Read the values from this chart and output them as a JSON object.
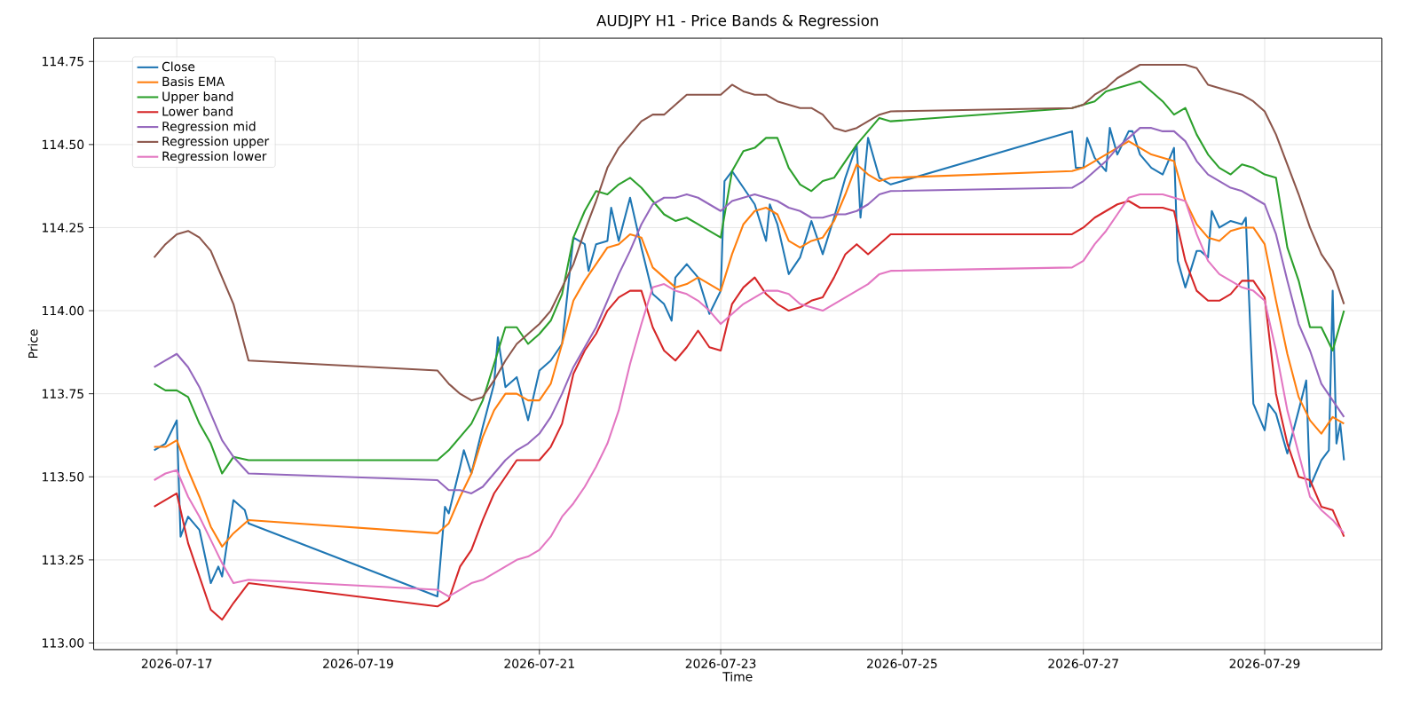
{
  "chart_data": {
    "type": "line",
    "title": "AUDJPY H1 - Price Bands & Regression",
    "xlabel": "Time",
    "ylabel": "Price",
    "xlim": [
      "2026-07-16T02:00",
      "2026-07-30T07:00"
    ],
    "ylim": [
      112.98,
      114.82
    ],
    "xticks": [
      "2026-07-17",
      "2026-07-19",
      "2026-07-21",
      "2026-07-23",
      "2026-07-25",
      "2026-07-27",
      "2026-07-29"
    ],
    "yticks": [
      {
        "value": 113.0,
        "label": "113.00"
      },
      {
        "value": 113.25,
        "label": "113.25"
      },
      {
        "value": 113.5,
        "label": "113.50"
      },
      {
        "value": 113.75,
        "label": "113.75"
      },
      {
        "value": 114.0,
        "label": "114.00"
      },
      {
        "value": 114.25,
        "label": "114.25"
      },
      {
        "value": 114.5,
        "label": "114.50"
      },
      {
        "value": 114.75,
        "label": "114.75"
      }
    ],
    "grid": true,
    "legend": "top left",
    "x": [
      "2026-07-16T18:00",
      "2026-07-16T21:00",
      "2026-07-17T00:00",
      "2026-07-17T03:00",
      "2026-07-17T06:00",
      "2026-07-17T09:00",
      "2026-07-17T12:00",
      "2026-07-17T15:00",
      "2026-07-17T19:00",
      "2026-07-19T21:00",
      "2026-07-20T00:00",
      "2026-07-20T03:00",
      "2026-07-20T06:00",
      "2026-07-20T09:00",
      "2026-07-20T12:00",
      "2026-07-20T15:00",
      "2026-07-20T18:00",
      "2026-07-20T21:00",
      "2026-07-21T00:00",
      "2026-07-21T03:00",
      "2026-07-21T06:00",
      "2026-07-21T09:00",
      "2026-07-21T12:00",
      "2026-07-21T15:00",
      "2026-07-21T18:00",
      "2026-07-21T21:00",
      "2026-07-22T00:00",
      "2026-07-22T03:00",
      "2026-07-22T06:00",
      "2026-07-22T09:00",
      "2026-07-22T12:00",
      "2026-07-22T15:00",
      "2026-07-22T18:00",
      "2026-07-22T21:00",
      "2026-07-23T00:00",
      "2026-07-23T03:00",
      "2026-07-23T06:00",
      "2026-07-23T09:00",
      "2026-07-23T12:00",
      "2026-07-23T15:00",
      "2026-07-23T18:00",
      "2026-07-23T21:00",
      "2026-07-24T00:00",
      "2026-07-24T03:00",
      "2026-07-24T06:00",
      "2026-07-24T09:00",
      "2026-07-24T12:00",
      "2026-07-24T15:00",
      "2026-07-24T18:00",
      "2026-07-24T21:00",
      "2026-07-26T21:00",
      "2026-07-27T00:00",
      "2026-07-27T03:00",
      "2026-07-27T06:00",
      "2026-07-27T09:00",
      "2026-07-27T12:00",
      "2026-07-27T15:00",
      "2026-07-27T18:00",
      "2026-07-27T21:00",
      "2026-07-28T00:00",
      "2026-07-28T03:00",
      "2026-07-28T06:00",
      "2026-07-28T09:00",
      "2026-07-28T12:00",
      "2026-07-28T15:00",
      "2026-07-28T18:00",
      "2026-07-28T21:00",
      "2026-07-29T00:00",
      "2026-07-29T03:00",
      "2026-07-29T06:00",
      "2026-07-29T09:00",
      "2026-07-29T12:00",
      "2026-07-29T15:00",
      "2026-07-29T18:00",
      "2026-07-29T21:00"
    ],
    "series": [
      {
        "name": "Close",
        "color": "#1f77b4",
        "x": [
          "2026-07-16T18:00",
          "2026-07-16T21:00",
          "2026-07-17T00:00",
          "2026-07-17T01:00",
          "2026-07-17T03:00",
          "2026-07-17T06:00",
          "2026-07-17T09:00",
          "2026-07-17T11:00",
          "2026-07-17T12:00",
          "2026-07-17T15:00",
          "2026-07-17T17:00",
          "2026-07-17T18:00",
          "2026-07-17T19:00",
          "2026-07-19T21:00",
          "2026-07-19T23:00",
          "2026-07-20T00:00",
          "2026-07-20T03:00",
          "2026-07-20T04:00",
          "2026-07-20T06:00",
          "2026-07-20T09:00",
          "2026-07-20T12:00",
          "2026-07-20T13:00",
          "2026-07-20T15:00",
          "2026-07-20T18:00",
          "2026-07-20T21:00",
          "2026-07-21T00:00",
          "2026-07-21T03:00",
          "2026-07-21T06:00",
          "2026-07-21T09:00",
          "2026-07-21T12:00",
          "2026-07-21T13:00",
          "2026-07-21T15:00",
          "2026-07-21T18:00",
          "2026-07-21T19:00",
          "2026-07-21T21:00",
          "2026-07-22T00:00",
          "2026-07-22T03:00",
          "2026-07-22T06:00",
          "2026-07-22T09:00",
          "2026-07-22T11:00",
          "2026-07-22T12:00",
          "2026-07-22T15:00",
          "2026-07-22T18:00",
          "2026-07-22T21:00",
          "2026-07-23T00:00",
          "2026-07-23T01:00",
          "2026-07-23T03:00",
          "2026-07-23T06:00",
          "2026-07-23T09:00",
          "2026-07-23T12:00",
          "2026-07-23T13:00",
          "2026-07-23T15:00",
          "2026-07-23T18:00",
          "2026-07-23T21:00",
          "2026-07-24T00:00",
          "2026-07-24T03:00",
          "2026-07-24T06:00",
          "2026-07-24T09:00",
          "2026-07-24T12:00",
          "2026-07-24T13:00",
          "2026-07-24T15:00",
          "2026-07-24T18:00",
          "2026-07-24T21:00",
          "2026-07-26T21:00",
          "2026-07-26T22:00",
          "2026-07-27T00:00",
          "2026-07-27T01:00",
          "2026-07-27T03:00",
          "2026-07-27T06:00",
          "2026-07-27T07:00",
          "2026-07-27T09:00",
          "2026-07-27T12:00",
          "2026-07-27T13:00",
          "2026-07-27T15:00",
          "2026-07-27T18:00",
          "2026-07-27T21:00",
          "2026-07-28T00:00",
          "2026-07-28T01:00",
          "2026-07-28T03:00",
          "2026-07-28T06:00",
          "2026-07-28T07:00",
          "2026-07-28T09:00",
          "2026-07-28T10:00",
          "2026-07-28T12:00",
          "2026-07-28T15:00",
          "2026-07-28T18:00",
          "2026-07-28T19:00",
          "2026-07-28T21:00",
          "2026-07-29T00:00",
          "2026-07-29T01:00",
          "2026-07-29T03:00",
          "2026-07-29T06:00",
          "2026-07-29T09:00",
          "2026-07-29T11:00",
          "2026-07-29T12:00",
          "2026-07-29T15:00",
          "2026-07-29T17:00",
          "2026-07-29T18:00",
          "2026-07-29T19:00",
          "2026-07-29T20:00",
          "2026-07-29T21:00"
        ],
        "values": [
          113.58,
          113.6,
          113.67,
          113.32,
          113.38,
          113.34,
          113.18,
          113.23,
          113.2,
          113.43,
          113.41,
          113.4,
          113.36,
          113.14,
          113.41,
          113.39,
          113.53,
          113.58,
          113.51,
          113.65,
          113.78,
          113.92,
          113.77,
          113.8,
          113.67,
          113.82,
          113.85,
          113.9,
          114.22,
          114.2,
          114.12,
          114.2,
          114.21,
          114.31,
          114.21,
          114.34,
          114.19,
          114.05,
          114.02,
          113.97,
          114.1,
          114.14,
          114.1,
          113.99,
          114.06,
          114.39,
          114.42,
          114.37,
          114.32,
          114.21,
          114.32,
          114.26,
          114.11,
          114.16,
          114.27,
          114.17,
          114.28,
          114.4,
          114.5,
          114.28,
          114.52,
          114.4,
          114.38,
          114.54,
          114.43,
          114.43,
          114.52,
          114.46,
          114.42,
          114.55,
          114.47,
          114.54,
          114.54,
          114.47,
          114.43,
          114.41,
          114.49,
          114.15,
          114.07,
          114.18,
          114.18,
          114.16,
          114.3,
          114.25,
          114.27,
          114.26,
          114.28,
          113.72,
          113.64,
          113.72,
          113.69,
          113.57,
          113.7,
          113.79,
          113.47,
          113.55,
          113.58,
          114.06,
          113.6,
          113.66,
          113.55
        ]
      },
      {
        "name": "Basis EMA",
        "color": "#ff7f0e",
        "values": [
          113.59,
          113.59,
          113.61,
          113.52,
          113.44,
          113.35,
          113.29,
          113.33,
          113.37,
          113.33,
          113.36,
          113.44,
          113.51,
          113.62,
          113.7,
          113.75,
          113.75,
          113.73,
          113.73,
          113.78,
          113.9,
          114.03,
          114.09,
          114.14,
          114.19,
          114.2,
          114.23,
          114.22,
          114.13,
          114.1,
          114.07,
          114.08,
          114.1,
          114.08,
          114.06,
          114.17,
          114.26,
          114.3,
          114.31,
          114.29,
          114.21,
          114.19,
          114.21,
          114.22,
          114.27,
          114.35,
          114.44,
          114.41,
          114.39,
          114.4,
          114.42,
          114.43,
          114.45,
          114.47,
          114.49,
          114.51,
          114.49,
          114.47,
          114.46,
          114.45,
          114.33,
          114.26,
          114.22,
          114.21,
          114.24,
          114.25,
          114.25,
          114.2,
          114.03,
          113.87,
          113.74,
          113.67,
          113.63,
          113.68,
          113.66
        ]
      },
      {
        "name": "Upper band",
        "color": "#2ca02c",
        "values": [
          113.78,
          113.76,
          113.76,
          113.74,
          113.66,
          113.6,
          113.51,
          113.56,
          113.55,
          113.55,
          113.58,
          113.62,
          113.66,
          113.73,
          113.84,
          113.95,
          113.95,
          113.9,
          113.93,
          113.97,
          114.05,
          114.22,
          114.3,
          114.36,
          114.35,
          114.38,
          114.4,
          114.37,
          114.33,
          114.29,
          114.27,
          114.28,
          114.26,
          114.24,
          114.22,
          114.42,
          114.48,
          114.49,
          114.52,
          114.52,
          114.43,
          114.38,
          114.36,
          114.39,
          114.4,
          114.45,
          114.5,
          114.54,
          114.58,
          114.57,
          114.61,
          114.62,
          114.63,
          114.66,
          114.67,
          114.68,
          114.69,
          114.66,
          114.63,
          114.59,
          114.61,
          114.53,
          114.47,
          114.43,
          114.41,
          114.44,
          114.43,
          114.41,
          114.4,
          114.19,
          114.09,
          113.95,
          113.95,
          113.88,
          114.0
        ]
      },
      {
        "name": "Lower band",
        "color": "#d62728",
        "values": [
          113.41,
          113.43,
          113.45,
          113.3,
          113.2,
          113.1,
          113.07,
          113.12,
          113.18,
          113.11,
          113.13,
          113.23,
          113.28,
          113.37,
          113.45,
          113.5,
          113.55,
          113.55,
          113.55,
          113.59,
          113.66,
          113.81,
          113.88,
          113.93,
          114.0,
          114.04,
          114.06,
          114.06,
          113.95,
          113.88,
          113.85,
          113.89,
          113.94,
          113.89,
          113.88,
          114.02,
          114.07,
          114.1,
          114.05,
          114.02,
          114.0,
          114.01,
          114.03,
          114.04,
          114.1,
          114.17,
          114.2,
          114.17,
          114.2,
          114.23,
          114.23,
          114.25,
          114.28,
          114.3,
          114.32,
          114.33,
          114.31,
          114.31,
          114.31,
          114.3,
          114.15,
          114.06,
          114.03,
          114.03,
          114.05,
          114.09,
          114.09,
          114.04,
          113.75,
          113.6,
          113.5,
          113.49,
          113.41,
          113.4,
          113.32
        ]
      },
      {
        "name": "Regression mid",
        "color": "#9467bd",
        "values": [
          113.83,
          113.85,
          113.87,
          113.83,
          113.77,
          113.69,
          113.61,
          113.56,
          113.51,
          113.49,
          113.46,
          113.46,
          113.45,
          113.47,
          113.51,
          113.55,
          113.58,
          113.6,
          113.63,
          113.68,
          113.75,
          113.83,
          113.89,
          113.95,
          114.03,
          114.11,
          114.18,
          114.26,
          114.32,
          114.34,
          114.34,
          114.35,
          114.34,
          114.32,
          114.3,
          114.33,
          114.34,
          114.35,
          114.34,
          114.33,
          114.31,
          114.3,
          114.28,
          114.28,
          114.29,
          114.29,
          114.3,
          114.32,
          114.35,
          114.36,
          114.37,
          114.39,
          114.42,
          114.45,
          114.49,
          114.52,
          114.55,
          114.55,
          114.54,
          114.54,
          114.51,
          114.45,
          114.41,
          114.39,
          114.37,
          114.36,
          114.34,
          114.32,
          114.23,
          114.09,
          113.96,
          113.88,
          113.78,
          113.73,
          113.68
        ]
      },
      {
        "name": "Regression upper",
        "color": "#8c564b",
        "values": [
          114.16,
          114.2,
          114.23,
          114.24,
          114.22,
          114.18,
          114.1,
          114.02,
          113.85,
          113.82,
          113.78,
          113.75,
          113.73,
          113.74,
          113.79,
          113.85,
          113.9,
          113.93,
          113.96,
          114.0,
          114.07,
          114.14,
          114.24,
          114.33,
          114.43,
          114.49,
          114.53,
          114.57,
          114.59,
          114.59,
          114.62,
          114.65,
          114.65,
          114.65,
          114.65,
          114.68,
          114.66,
          114.65,
          114.65,
          114.63,
          114.62,
          114.61,
          114.61,
          114.59,
          114.55,
          114.54,
          114.55,
          114.57,
          114.59,
          114.6,
          114.61,
          114.62,
          114.65,
          114.67,
          114.7,
          114.72,
          114.74,
          114.74,
          114.74,
          114.74,
          114.74,
          114.73,
          114.68,
          114.67,
          114.66,
          114.65,
          114.63,
          114.6,
          114.53,
          114.44,
          114.35,
          114.25,
          114.17,
          114.12,
          114.02
        ]
      },
      {
        "name": "Regression lower",
        "color": "#e377c2",
        "values": [
          113.49,
          113.51,
          113.52,
          113.44,
          113.38,
          113.31,
          113.24,
          113.18,
          113.19,
          113.16,
          113.14,
          113.16,
          113.18,
          113.19,
          113.21,
          113.23,
          113.25,
          113.26,
          113.28,
          113.32,
          113.38,
          113.42,
          113.47,
          113.53,
          113.6,
          113.7,
          113.84,
          113.96,
          114.07,
          114.08,
          114.06,
          114.05,
          114.03,
          114.0,
          113.96,
          113.99,
          114.02,
          114.04,
          114.06,
          114.06,
          114.05,
          114.02,
          114.01,
          114.0,
          114.02,
          114.04,
          114.06,
          114.08,
          114.11,
          114.12,
          114.13,
          114.15,
          114.2,
          114.24,
          114.29,
          114.34,
          114.35,
          114.35,
          114.35,
          114.34,
          114.33,
          114.23,
          114.15,
          114.11,
          114.09,
          114.07,
          114.06,
          114.03,
          113.88,
          113.7,
          113.57,
          113.44,
          113.4,
          113.37,
          113.33
        ]
      }
    ]
  }
}
